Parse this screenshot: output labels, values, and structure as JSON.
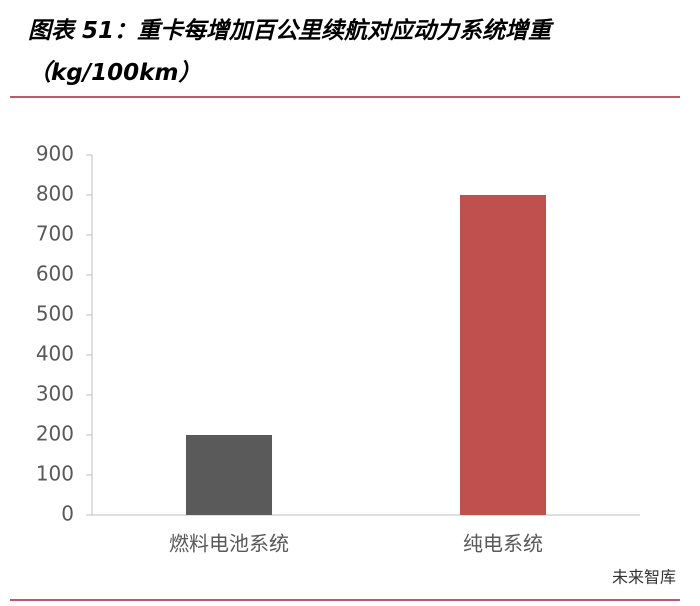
{
  "chart_data": {
    "type": "bar",
    "title": "图表 51：重卡每增加百公里续航对应动力系统增重（kg/100km）",
    "categories": [
      "燃料电池系统",
      "纯电系统"
    ],
    "values": [
      200,
      800
    ],
    "colors": [
      "#5a5a5a",
      "#c0504d"
    ],
    "ylim": [
      0,
      900
    ],
    "yticks": [
      0,
      100,
      200,
      300,
      400,
      500,
      600,
      700,
      800,
      900
    ],
    "grid": false
  },
  "watermark": "未来智库"
}
